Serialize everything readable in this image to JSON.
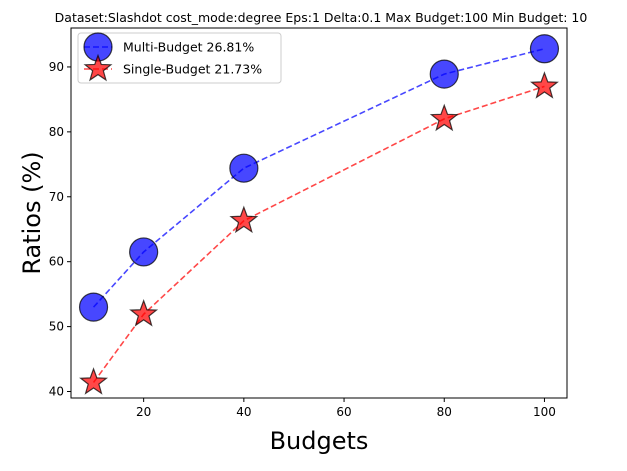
{
  "chart_data": {
    "type": "line",
    "title": "Dataset:Slashdot cost_mode:degree Eps:1 Delta:0.1 Max Budget:100 Min Budget: 10",
    "xlabel": "Budgets",
    "ylabel": "Ratios (%)",
    "xlim": [
      5.5,
      104.5
    ],
    "ylim": [
      39,
      96
    ],
    "xticks": [
      20,
      40,
      60,
      80,
      100
    ],
    "yticks": [
      40,
      50,
      60,
      70,
      80,
      90
    ],
    "grid": false,
    "legend_position": "top-left",
    "series": [
      {
        "name": "Multi-Budget 26.81%",
        "x": [
          10,
          20,
          40,
          80,
          100
        ],
        "y": [
          53.0,
          61.5,
          74.4,
          88.9,
          92.8
        ],
        "color": "#0000ff",
        "marker": "circle",
        "linestyle": "dashed"
      },
      {
        "name": "Single-Budget 21.73%",
        "x": [
          10,
          20,
          40,
          80,
          100
        ],
        "y": [
          41.4,
          51.9,
          66.3,
          82.0,
          87.0
        ],
        "color": "#ff0000",
        "marker": "star",
        "linestyle": "dashed"
      }
    ]
  }
}
